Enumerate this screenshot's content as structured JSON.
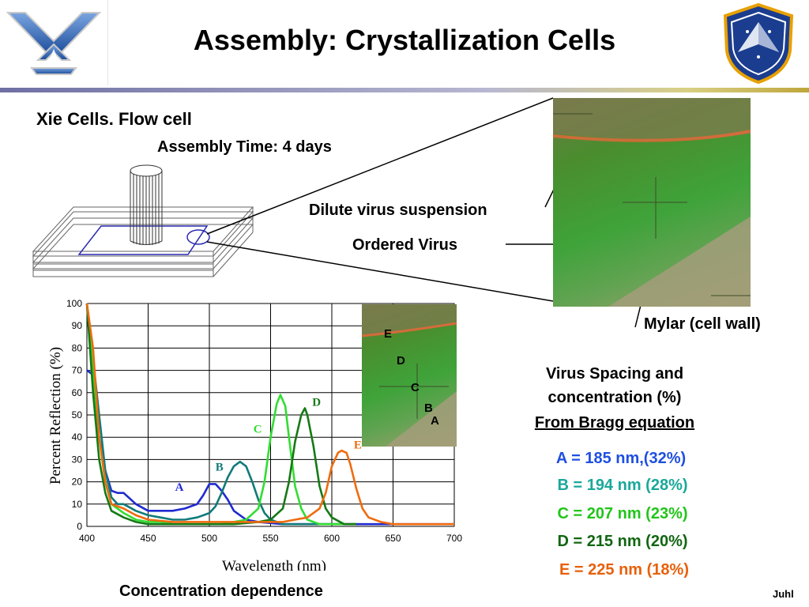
{
  "slide": {
    "title": "Assembly: Crystallization Cells",
    "subtitle": "Xie Cells. Flow cell",
    "assembly_time": "Assembly Time: 4 days",
    "label_dilute": "Dilute virus suspension",
    "label_ordered": "Ordered Virus",
    "label_mylar": "Mylar (cell wall)",
    "spacing_heading_1": "Virus Spacing and",
    "spacing_heading_2": "concentration (%)",
    "spacing_heading_3": "From Bragg equation",
    "results": [
      {
        "text": "A = 185 nm,(32%)",
        "color": "#1f4fe0"
      },
      {
        "text": "B = 194 nm (28%)",
        "color": "#1aa89a"
      },
      {
        "text": "C = 207 nm (23%)",
        "color": "#22c51a"
      },
      {
        "text": "D = 215 nm (20%)",
        "color": "#116611"
      },
      {
        "text": "E = 225 nm (18%)",
        "color": "#e8600a"
      }
    ],
    "caption": "Concentration dependence",
    "author": "Juhl",
    "inset_labels": [
      "E",
      "D",
      "C",
      "B",
      "A"
    ]
  },
  "chart_data": {
    "type": "line",
    "xlabel": "Wavelength (nm)",
    "ylabel": "Percent Reflection (%)",
    "xlim": [
      400,
      700
    ],
    "ylim": [
      0,
      100
    ],
    "xticks": [
      400,
      450,
      500,
      550,
      600,
      650,
      700
    ],
    "yticks": [
      0,
      10,
      20,
      30,
      40,
      50,
      60,
      70,
      80,
      90,
      100
    ],
    "grid": true,
    "series": [
      {
        "name": "A",
        "color": "#1f2ad0",
        "label_at": [
          472,
          16
        ],
        "x": [
          400,
          405,
          410,
          415,
          420,
          425,
          430,
          440,
          450,
          460,
          470,
          480,
          490,
          495,
          500,
          505,
          510,
          515,
          520,
          530,
          540,
          560,
          580,
          600,
          650,
          700
        ],
        "y": [
          70,
          68,
          40,
          25,
          16,
          15,
          15,
          10,
          7,
          7,
          7,
          8,
          10,
          14,
          19,
          19,
          16,
          12,
          7,
          3,
          2,
          1,
          1,
          1,
          1,
          1
        ]
      },
      {
        "name": "B",
        "color": "#127a7a",
        "label_at": [
          505,
          25
        ],
        "x": [
          400,
          405,
          410,
          415,
          420,
          425,
          430,
          440,
          450,
          460,
          470,
          480,
          490,
          500,
          505,
          510,
          515,
          520,
          525,
          530,
          535,
          540,
          545,
          550,
          560,
          580,
          620
        ],
        "y": [
          100,
          75,
          50,
          25,
          13,
          10,
          10,
          7,
          5,
          4,
          3,
          3,
          4,
          6,
          9,
          15,
          22,
          27,
          29,
          27,
          20,
          12,
          6,
          3,
          1,
          1,
          1
        ]
      },
      {
        "name": "C",
        "color": "#32dd32",
        "label_at": [
          536,
          42
        ],
        "x": [
          400,
          405,
          410,
          415,
          420,
          430,
          440,
          450,
          460,
          470,
          480,
          490,
          500,
          510,
          520,
          530,
          540,
          545,
          550,
          555,
          558,
          562,
          565,
          570,
          575,
          580,
          590,
          600,
          620
        ],
        "y": [
          100,
          70,
          40,
          20,
          10,
          6,
          3,
          2,
          2,
          1,
          1,
          1,
          1,
          1,
          2,
          3,
          8,
          20,
          40,
          55,
          59,
          54,
          40,
          18,
          8,
          3,
          1,
          1,
          1
        ]
      },
      {
        "name": "D",
        "color": "#157a15",
        "label_at": [
          584,
          54
        ],
        "x": [
          400,
          405,
          410,
          415,
          420,
          430,
          440,
          450,
          460,
          480,
          500,
          520,
          540,
          550,
          560,
          565,
          570,
          575,
          578,
          580,
          585,
          590,
          595,
          600,
          610,
          620
        ],
        "y": [
          100,
          60,
          30,
          15,
          7,
          4,
          2,
          1,
          1,
          1,
          1,
          1,
          2,
          3,
          8,
          20,
          38,
          50,
          53,
          50,
          36,
          18,
          8,
          4,
          1,
          1
        ]
      },
      {
        "name": "E",
        "color": "#ef6b0f",
        "label_at": [
          618,
          35
        ],
        "x": [
          400,
          405,
          410,
          415,
          420,
          430,
          440,
          450,
          470,
          500,
          540,
          560,
          570,
          580,
          590,
          595,
          600,
          605,
          608,
          612,
          615,
          620,
          625,
          630,
          640,
          650,
          660,
          700
        ],
        "y": [
          100,
          80,
          40,
          20,
          10,
          8,
          5,
          3,
          2,
          2,
          2,
          2,
          3,
          4,
          8,
          15,
          27,
          33,
          34,
          33,
          28,
          17,
          8,
          4,
          2,
          1,
          1,
          1
        ]
      }
    ]
  }
}
